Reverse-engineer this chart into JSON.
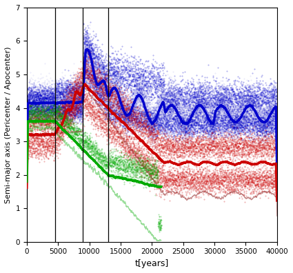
{
  "xlim": [
    0,
    40000
  ],
  "ylim": [
    0,
    7
  ],
  "xticks": [
    0,
    5000,
    10000,
    15000,
    20000,
    25000,
    30000,
    35000,
    40000
  ],
  "yticks": [
    0,
    1,
    2,
    3,
    4,
    5,
    6,
    7
  ],
  "xlabel": "t[years]",
  "ylabel": "Semi-major axis (Pericenter / Apocenter)",
  "vlines": [
    4500,
    9000,
    13000
  ],
  "blue_color": "#0000cc",
  "red_color": "#cc0000",
  "green_color": "#00aa00",
  "darkred_color": "#993333",
  "thin_alpha": 0.4,
  "thick_lw": 2.5,
  "thin_lw": 0.8
}
